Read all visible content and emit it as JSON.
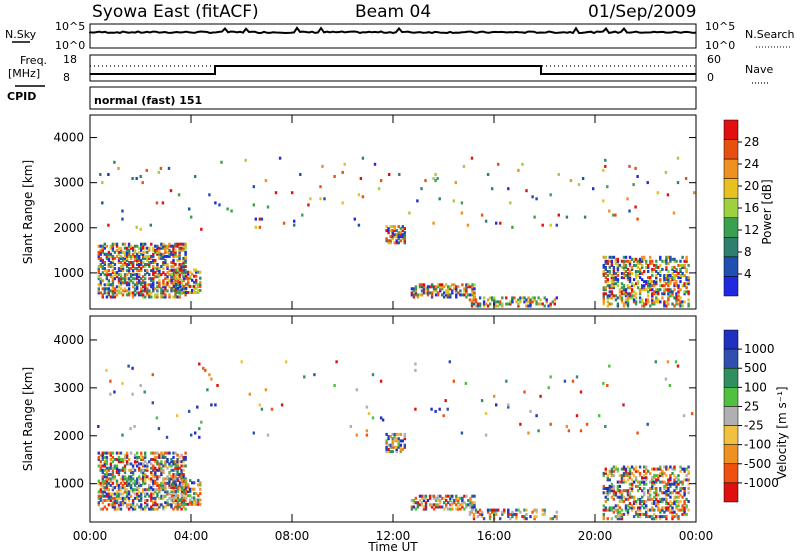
{
  "header": {
    "station": "Syowa East (fitACF)",
    "beam": "Beam 04",
    "date": "01/Sep/2009"
  },
  "status_panels": {
    "nsky_label": "N.Sky",
    "nsky_ticks": [
      "10^5",
      "10^0"
    ],
    "nsearch_label": "N.Search",
    "nsearch_ticks": [
      "10^5",
      "10^0"
    ],
    "freq_label_1": "Freq.",
    "freq_label_2": "[MHz]",
    "freq_ticks": [
      "18",
      "8"
    ],
    "nave_label": "Nave",
    "nave_ticks": [
      "60",
      "0"
    ],
    "cpid_label": "CPID",
    "cpid_value": "normal (fast) 151"
  },
  "colors": {
    "power": [
      "#1f2ae0",
      "#1f4fb0",
      "#2f7f6f",
      "#3aa050",
      "#9fd040",
      "#e8c020",
      "#f09020",
      "#e85010",
      "#e01010"
    ],
    "velocity": [
      "#e01010",
      "#f05010",
      "#f09020",
      "#f0c040",
      "#b0b0b0",
      "#50c040",
      "#2f8f5f",
      "#3050b0",
      "#2030c0"
    ]
  },
  "chart_data": [
    {
      "type": "heatmap",
      "panel": "power",
      "ylabel": "Slant Range [km]",
      "yticks": [
        "1000",
        "2000",
        "3000",
        "4000"
      ],
      "xticks": [
        "00:00",
        "04:00",
        "08:00",
        "12:00",
        "16:00",
        "20:00",
        "00:00"
      ],
      "xlim": [
        0,
        24
      ],
      "ylim": [
        200,
        4500
      ],
      "colorbar_label": "Power [dB]",
      "colorbar_ticks": [
        "4",
        "8",
        "12",
        "16",
        "20",
        "24",
        "28"
      ],
      "colorbar_range": [
        0,
        30
      ]
    },
    {
      "type": "heatmap",
      "panel": "velocity",
      "ylabel": "Slant Range [km]",
      "yticks": [
        "1000",
        "2000",
        "3000",
        "4000"
      ],
      "xticks": [
        "00:00",
        "04:00",
        "08:00",
        "12:00",
        "16:00",
        "20:00",
        "00:00"
      ],
      "xlim": [
        0,
        24
      ],
      "ylim": [
        200,
        4500
      ],
      "xlabel": "Time UT",
      "colorbar_label": "Velocity [m s⁻¹]",
      "colorbar_ticks": [
        "1000",
        "500",
        "100",
        "25",
        "-25",
        "-100",
        "-500",
        "-1000"
      ]
    }
  ]
}
